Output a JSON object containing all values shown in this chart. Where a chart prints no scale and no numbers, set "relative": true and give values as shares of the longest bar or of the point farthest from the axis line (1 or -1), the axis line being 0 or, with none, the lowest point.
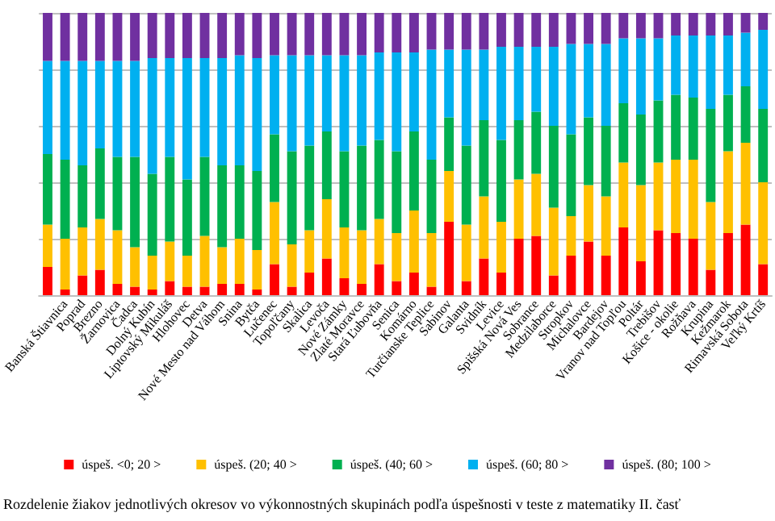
{
  "chart_data": {
    "type": "bar",
    "stacked": true,
    "relative": true,
    "grid": true,
    "legend": "bottom",
    "categories": [
      null,
      "Banská Štiavnica",
      "Poprad",
      "Brezno",
      "Žarnovica",
      "Čadca",
      "Dolný Kubín",
      "Liptovský Mikuláš",
      "Hlohovec",
      "Detva",
      "Nové Mesto nad Váhom",
      "Snina",
      "Bytča",
      "Lučenec",
      "Topoľčany",
      "Skalica",
      "Levoča",
      "Nové Zámky",
      "Zlaté Moravce",
      "Stará Ľubovňa",
      "Senica",
      "Komárno",
      "Turčianske Teplice",
      "Sabinov",
      "Galanta",
      "Svidník",
      "Levice",
      "Spišská Nová Ves",
      "Sobrance",
      "Medzilaborce",
      "Stropkov",
      "Michalovce",
      "Bardejov",
      "Vranov nad Topľou",
      "Poltár",
      "Trebišov",
      "Košice - okolie",
      "Rožňava",
      "Krupina",
      "Kežmarok",
      "Rimavská Sobota",
      "Veľký Krtíš"
    ],
    "series": [
      {
        "name": "úspeš. <0; 20 >",
        "color": "#ff0000",
        "values": [
          0.1,
          0.02,
          0.07,
          0.09,
          0.04,
          0.03,
          0.02,
          0.05,
          0.03,
          0.03,
          0.04,
          0.04,
          0.02,
          0.11,
          0.03,
          0.08,
          0.13,
          0.06,
          0.04,
          0.11,
          0.05,
          0.08,
          0.03,
          0.26,
          0.05,
          0.13,
          0.08,
          0.2,
          0.21,
          0.07,
          0.14,
          0.19,
          0.14,
          0.24,
          0.12,
          0.23,
          0.22,
          0.2,
          0.09,
          0.22,
          0.25,
          0.11
        ]
      },
      {
        "name": "úspeš. (20; 40 >",
        "color": "#ffc000",
        "values": [
          0.15,
          0.18,
          0.17,
          0.18,
          0.19,
          0.14,
          0.12,
          0.14,
          0.11,
          0.18,
          0.13,
          0.16,
          0.14,
          0.22,
          0.15,
          0.15,
          0.21,
          0.18,
          0.19,
          0.16,
          0.17,
          0.22,
          0.19,
          0.18,
          0.2,
          0.22,
          0.18,
          0.21,
          0.22,
          0.24,
          0.14,
          0.2,
          0.21,
          0.23,
          0.27,
          0.24,
          0.26,
          0.28,
          0.24,
          0.29,
          0.29,
          0.29
        ]
      },
      {
        "name": "úspeš. (40; 60 >",
        "color": "#00b050",
        "values": [
          0.25,
          0.28,
          0.22,
          0.25,
          0.26,
          0.32,
          0.29,
          0.3,
          0.27,
          0.28,
          0.29,
          0.26,
          0.28,
          0.24,
          0.33,
          0.3,
          0.24,
          0.27,
          0.3,
          0.28,
          0.29,
          0.28,
          0.26,
          0.19,
          0.28,
          0.27,
          0.29,
          0.21,
          0.22,
          0.29,
          0.29,
          0.24,
          0.25,
          0.21,
          0.25,
          0.22,
          0.23,
          0.22,
          0.33,
          0.2,
          0.2,
          0.26
        ]
      },
      {
        "name": "úspeš. (60; 80 >",
        "color": "#00b0f0",
        "values": [
          0.33,
          0.35,
          0.37,
          0.31,
          0.34,
          0.34,
          0.41,
          0.35,
          0.43,
          0.35,
          0.38,
          0.39,
          0.4,
          0.28,
          0.34,
          0.32,
          0.27,
          0.34,
          0.32,
          0.31,
          0.35,
          0.28,
          0.39,
          0.24,
          0.34,
          0.25,
          0.33,
          0.26,
          0.23,
          0.28,
          0.32,
          0.26,
          0.29,
          0.23,
          0.27,
          0.22,
          0.21,
          0.22,
          0.26,
          0.21,
          0.19,
          0.28
        ]
      },
      {
        "name": "úspeš. (80; 100 >",
        "color": "#7030a0",
        "values": [
          0.17,
          0.17,
          0.17,
          0.17,
          0.17,
          0.17,
          0.16,
          0.16,
          0.16,
          0.16,
          0.16,
          0.15,
          0.16,
          0.15,
          0.15,
          0.15,
          0.15,
          0.15,
          0.15,
          0.14,
          0.14,
          0.14,
          0.13,
          0.13,
          0.13,
          0.13,
          0.12,
          0.12,
          0.12,
          0.12,
          0.11,
          0.11,
          0.11,
          0.09,
          0.09,
          0.09,
          0.08,
          0.08,
          0.08,
          0.08,
          0.07,
          0.06
        ]
      }
    ],
    "annotations": [
      "Rozdelenie žiakov jednotlivých okresov vo výkonnostných skupinách podľa úspešnosti v teste z matematiky II. časť"
    ]
  }
}
